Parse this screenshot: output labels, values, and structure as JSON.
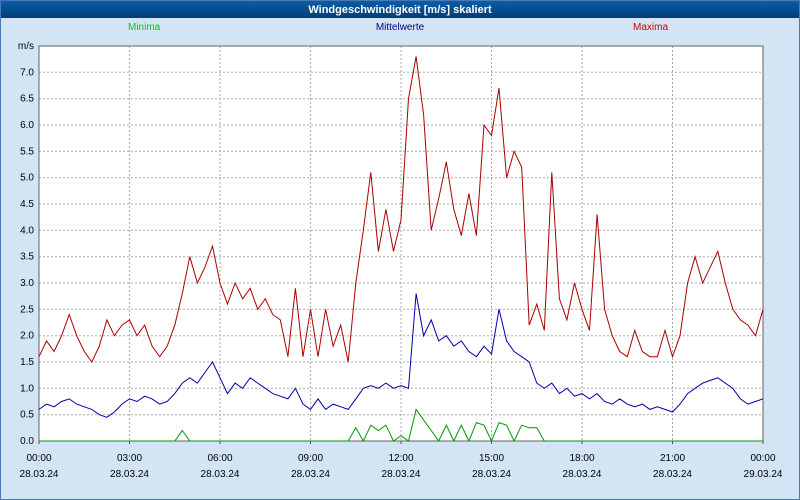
{
  "header": {
    "title": "Windgeschwindigkeit [m/s] skaliert"
  },
  "legend": {
    "items": [
      {
        "label": "Minima",
        "color": "#00cc00"
      },
      {
        "label": "Mittelwerte",
        "color": "#000080"
      },
      {
        "label": "Maxima",
        "color": "#cc0000"
      }
    ]
  },
  "chart_data": {
    "type": "line",
    "title": "Windgeschwindigkeit [m/s] skaliert",
    "xlabel": "",
    "ylabel": "m/s",
    "xlim": [
      0,
      24
    ],
    "ylim": [
      0,
      7.5
    ],
    "grid": "dotted",
    "x_step_hours": 0.25,
    "y_ticks": [
      0,
      0.5,
      1,
      1.5,
      2,
      2.5,
      3,
      3.5,
      4,
      4.5,
      5,
      5.5,
      6,
      6.5,
      7
    ],
    "x_ticks": {
      "hours": [
        0,
        3,
        6,
        9,
        12,
        15,
        18,
        21,
        24
      ],
      "times": [
        "00:00",
        "03:00",
        "06:00",
        "09:00",
        "12:00",
        "15:00",
        "18:00",
        "21:00",
        "00:00"
      ],
      "dates": [
        "28.03.24",
        "28.03.24",
        "28.03.24",
        "28.03.24",
        "28.03.24",
        "28.03.24",
        "28.03.24",
        "28.03.24",
        "29.03.24"
      ]
    },
    "series": [
      {
        "name": "Maxima",
        "color": "#aa0000",
        "values": [
          1.6,
          1.9,
          1.7,
          2.0,
          2.4,
          2.0,
          1.7,
          1.5,
          1.8,
          2.3,
          2.0,
          2.2,
          2.3,
          2.0,
          2.2,
          1.8,
          1.6,
          1.8,
          2.2,
          2.8,
          3.5,
          3.0,
          3.3,
          3.7,
          3.0,
          2.6,
          3.0,
          2.7,
          2.9,
          2.5,
          2.7,
          2.4,
          2.3,
          1.6,
          2.9,
          1.6,
          2.5,
          1.6,
          2.5,
          1.8,
          2.2,
          1.5,
          3.0,
          4.0,
          5.1,
          3.6,
          4.4,
          3.6,
          4.2,
          6.5,
          7.3,
          6.2,
          4.0,
          4.6,
          5.3,
          4.4,
          3.9,
          4.7,
          3.9,
          6.0,
          5.8,
          6.7,
          5.0,
          5.5,
          5.2,
          2.2,
          2.6,
          2.1,
          5.1,
          2.7,
          2.3,
          3.0,
          2.5,
          2.1,
          4.3,
          2.5,
          2.0,
          1.7,
          1.6,
          2.1,
          1.7,
          1.6,
          1.6,
          2.1,
          1.6,
          2.0,
          3.0,
          3.5,
          3.0,
          3.3,
          3.6,
          3.0,
          2.5,
          2.3,
          2.2,
          2.0,
          2.5
        ]
      },
      {
        "name": "Mittelwerte",
        "color": "#0000aa",
        "values": [
          0.6,
          0.7,
          0.65,
          0.75,
          0.8,
          0.7,
          0.65,
          0.6,
          0.5,
          0.45,
          0.55,
          0.7,
          0.8,
          0.75,
          0.85,
          0.8,
          0.7,
          0.75,
          0.9,
          1.1,
          1.2,
          1.1,
          1.3,
          1.5,
          1.2,
          0.9,
          1.1,
          1.0,
          1.2,
          1.1,
          1.0,
          0.9,
          0.85,
          0.8,
          1.0,
          0.7,
          0.6,
          0.8,
          0.6,
          0.7,
          0.65,
          0.6,
          0.8,
          1.0,
          1.05,
          1.0,
          1.1,
          1.0,
          1.05,
          1.0,
          2.8,
          2.0,
          2.3,
          1.9,
          2.0,
          1.8,
          1.9,
          1.7,
          1.6,
          1.8,
          1.65,
          2.5,
          1.9,
          1.7,
          1.6,
          1.5,
          1.1,
          1.0,
          1.1,
          0.9,
          1.0,
          0.85,
          0.9,
          0.8,
          0.9,
          0.75,
          0.7,
          0.8,
          0.7,
          0.65,
          0.7,
          0.6,
          0.65,
          0.6,
          0.55,
          0.7,
          0.9,
          1.0,
          1.1,
          1.15,
          1.2,
          1.1,
          1.0,
          0.8,
          0.7,
          0.75,
          0.8
        ]
      },
      {
        "name": "Minima",
        "color": "#009900",
        "values": [
          0,
          0,
          0,
          0,
          0,
          0,
          0,
          0,
          0,
          0,
          0,
          0,
          0,
          0,
          0,
          0,
          0,
          0,
          0,
          0.2,
          0,
          0,
          0,
          0,
          0,
          0,
          0,
          0,
          0,
          0,
          0,
          0,
          0,
          0,
          0,
          0,
          0,
          0,
          0,
          0,
          0,
          0,
          0.25,
          0,
          0.3,
          0.2,
          0.3,
          0,
          0.1,
          0,
          0.6,
          0.4,
          0.2,
          0,
          0.3,
          0,
          0.3,
          0,
          0.35,
          0.3,
          0,
          0.35,
          0.3,
          0,
          0.3,
          0.25,
          0.25,
          0,
          0,
          0,
          0,
          0,
          0,
          0,
          0,
          0,
          0,
          0,
          0,
          0,
          0,
          0,
          0,
          0,
          0,
          0,
          0,
          0,
          0,
          0,
          0,
          0,
          0,
          0,
          0,
          0,
          0
        ]
      }
    ]
  }
}
